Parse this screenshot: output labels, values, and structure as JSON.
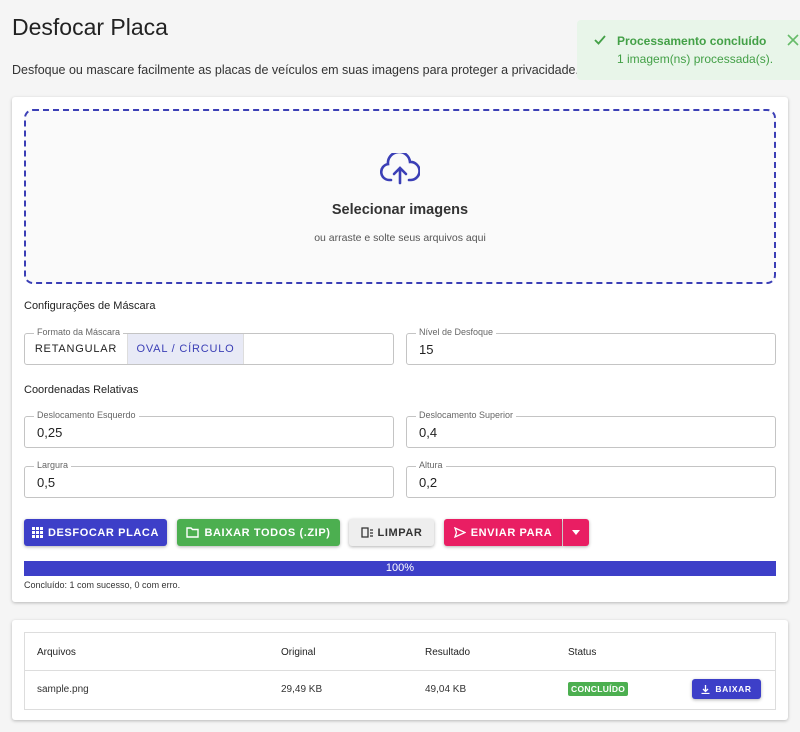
{
  "header": {
    "title": "Desfocar Placa",
    "description": "Desfoque ou mascare facilmente as placas de veículos em suas imagens para proteger a privacidade."
  },
  "toast": {
    "title": "Processamento concluído",
    "message": "1 imagem(ns) processada(s)."
  },
  "upload": {
    "title": "Selecionar imagens",
    "hint": "ou arraste e solte seus arquivos aqui"
  },
  "mask_settings": {
    "heading": "Configurações de Máscara",
    "shape_label": "Formato da Máscara",
    "shape_options": [
      "RETANGULAR",
      "OVAL / CÍRCULO"
    ],
    "blur_label": "Nível de Desfoque",
    "blur_value": "15"
  },
  "coordinates": {
    "heading": "Coordenadas Relativas",
    "fields": [
      {
        "label": "Deslocamento Esquerdo",
        "value": "0,25"
      },
      {
        "label": "Deslocamento Superior",
        "value": "0,4"
      },
      {
        "label": "Largura",
        "value": "0,5"
      },
      {
        "label": "Altura",
        "value": "0,2"
      }
    ]
  },
  "buttons": {
    "blur": "DESFOCAR PLACA",
    "download_all": "BAIXAR TODOS (.ZIP)",
    "clear": "LIMPAR",
    "send": "ENVIAR PARA"
  },
  "progress": {
    "label": "100%",
    "status": "Concluído: 1 com sucesso, 0 com erro."
  },
  "table": {
    "headers": [
      "Arquivos",
      "Original",
      "Resultado",
      "Status"
    ],
    "rows": [
      [
        "sample.png",
        "29,49 KB",
        "49,04 KB",
        "CONCLUÍDO"
      ]
    ],
    "action": "BAIXAR"
  }
}
